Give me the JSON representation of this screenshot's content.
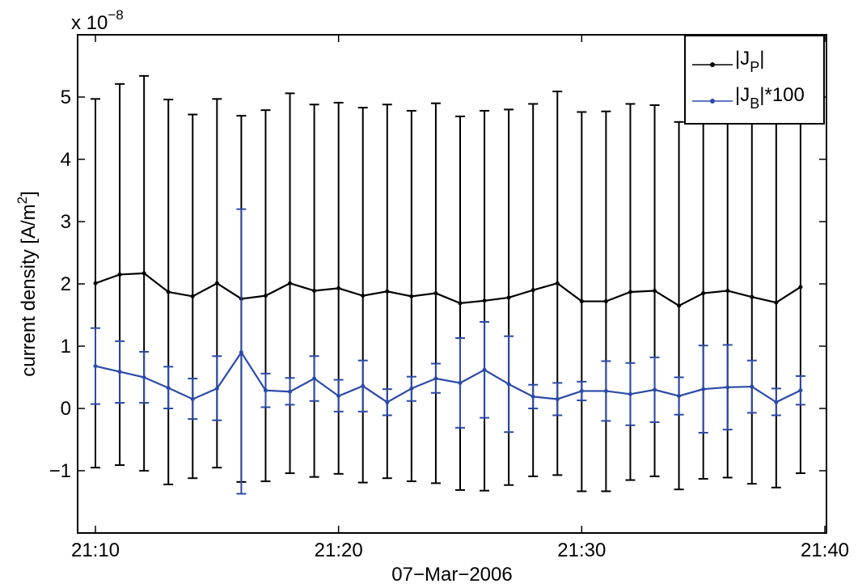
{
  "chart_data": {
    "type": "line",
    "xlabel": "07−Mar−2006",
    "ylabel": "current density [A/m",
    "ylabel_sup": "2",
    "ylabel_end": "]",
    "y_exponent_label": "x 10",
    "y_exponent_power": "−8",
    "xlim": [
      0,
      30
    ],
    "ylim": [
      -2,
      6
    ],
    "x_ticks": [
      0,
      10,
      20,
      30
    ],
    "x_tick_labels": [
      "21:10",
      "21:20",
      "21:30",
      "21:40"
    ],
    "y_ticks": [
      -1,
      0,
      1,
      2,
      3,
      4,
      5
    ],
    "y_tick_labels": [
      "−1",
      "0",
      "1",
      "2",
      "3",
      "4",
      "5"
    ],
    "grid": false,
    "legend_position": "top-right",
    "x": [
      0,
      1,
      2,
      3,
      4,
      5,
      6,
      7,
      8,
      9,
      10,
      11,
      12,
      13,
      14,
      15,
      16,
      17,
      18,
      19,
      20,
      21,
      22,
      23,
      24,
      25,
      26,
      27,
      28,
      29
    ],
    "series": [
      {
        "name": "|J",
        "name_sub": "P",
        "name_suffix": "|",
        "color": "#000000",
        "values": [
          2.01,
          2.15,
          2.17,
          1.87,
          1.8,
          2.01,
          1.76,
          1.81,
          2.01,
          1.89,
          1.93,
          1.81,
          1.88,
          1.8,
          1.85,
          1.69,
          1.73,
          1.78,
          1.9,
          2.01,
          1.72,
          1.72,
          1.87,
          1.89,
          1.65,
          1.85,
          1.89,
          1.79,
          1.7,
          1.95
        ],
        "upper": [
          4.97,
          5.21,
          5.34,
          4.96,
          4.72,
          4.97,
          4.7,
          4.79,
          5.06,
          4.88,
          4.91,
          4.83,
          4.88,
          4.78,
          4.9,
          4.69,
          4.78,
          4.8,
          4.89,
          5.09,
          4.76,
          4.77,
          4.89,
          4.87,
          4.6,
          4.82,
          4.89,
          4.79,
          4.68,
          4.91
        ],
        "lower": [
          -0.95,
          -0.91,
          -1.0,
          -1.22,
          -1.12,
          -0.95,
          -1.18,
          -1.17,
          -1.04,
          -1.1,
          -1.05,
          -1.19,
          -1.12,
          -1.17,
          -1.2,
          -1.31,
          -1.32,
          -1.23,
          -1.09,
          -1.07,
          -1.33,
          -1.33,
          -1.15,
          -1.09,
          -1.3,
          -1.13,
          -1.11,
          -1.21,
          -1.27,
          -1.04
        ]
      },
      {
        "name": "|J",
        "name_sub": "B",
        "name_suffix": "|*100",
        "color": "#2b4aa8",
        "values": [
          0.68,
          0.59,
          0.5,
          0.33,
          0.15,
          0.32,
          0.9,
          0.29,
          0.27,
          0.48,
          0.2,
          0.36,
          0.1,
          0.32,
          0.48,
          0.41,
          0.62,
          0.39,
          0.19,
          0.15,
          0.28,
          0.28,
          0.23,
          0.3,
          0.2,
          0.31,
          0.34,
          0.35,
          0.1,
          0.29
        ],
        "upper": [
          1.29,
          1.08,
          0.91,
          0.67,
          0.48,
          0.84,
          3.2,
          0.56,
          0.49,
          0.84,
          0.46,
          0.77,
          0.31,
          0.51,
          0.72,
          1.13,
          1.39,
          1.16,
          0.38,
          0.41,
          0.43,
          0.76,
          0.73,
          0.82,
          0.5,
          1.01,
          1.02,
          0.77,
          0.32,
          0.52
        ],
        "lower": [
          0.07,
          0.09,
          0.09,
          0.0,
          -0.17,
          -0.19,
          -1.37,
          0.02,
          0.06,
          0.12,
          -0.05,
          -0.05,
          -0.11,
          0.12,
          0.25,
          -0.31,
          -0.15,
          -0.38,
          0.0,
          -0.11,
          0.13,
          -0.2,
          -0.27,
          -0.22,
          -0.1,
          -0.39,
          -0.34,
          -0.07,
          -0.11,
          0.06
        ]
      }
    ]
  }
}
